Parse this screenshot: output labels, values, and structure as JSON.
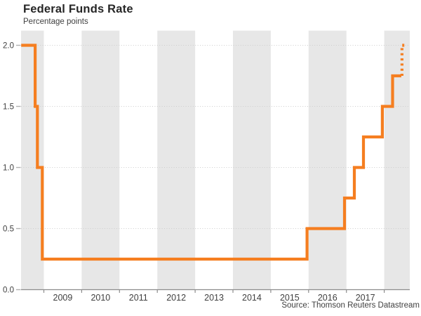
{
  "chart_data": {
    "type": "line",
    "subtype": "step-after",
    "title": "Federal Funds Rate",
    "subtitle": "Percentage points",
    "source": "Source: Thomson Reuters Datastream",
    "xlabel": "",
    "ylabel": "Percentage points",
    "legend": "none",
    "grid": "horizontal dotted",
    "x_range_years": [
      2008.4,
      2018.68
    ],
    "ylim": [
      0,
      2.12
    ],
    "ytick_values": [
      0.0,
      0.5,
      1.0,
      1.5,
      2.0
    ],
    "ytick_labels": [
      "0.0",
      "0.5",
      "1.0",
      "1.5",
      "2.0"
    ],
    "year_tick_boundaries": [
      2009,
      2010,
      2011,
      2012,
      2013,
      2014,
      2015,
      2016,
      2017,
      2018
    ],
    "year_labels": [
      "2009",
      "2010",
      "2011",
      "2012",
      "2013",
      "2014",
      "2015",
      "2016",
      "2017"
    ],
    "shaded_years": [
      2008,
      2010,
      2012,
      2014,
      2016,
      2018
    ],
    "series": [
      {
        "style": "solid",
        "points": [
          [
            2008.4,
            2.0
          ],
          [
            2008.77,
            1.5
          ],
          [
            2008.83,
            1.0
          ],
          [
            2008.96,
            0.25
          ],
          [
            2015.96,
            0.5
          ],
          [
            2016.95,
            0.75
          ],
          [
            2017.21,
            1.0
          ],
          [
            2017.45,
            1.25
          ],
          [
            2017.95,
            1.5
          ],
          [
            2018.22,
            1.75
          ],
          [
            2018.45,
            1.75
          ]
        ]
      },
      {
        "style": "dotted",
        "points": [
          [
            2018.47,
            1.75
          ],
          [
            2018.47,
            2.0
          ],
          [
            2018.56,
            2.0
          ]
        ]
      }
    ],
    "colors": {
      "line": "#f57e20",
      "band": "#e7e7e7",
      "grid": "#cdcdcd",
      "axis": "#8c8c8c",
      "tick": "#b0b0b0",
      "text": "#3f3f3f",
      "title": "#262626"
    }
  }
}
